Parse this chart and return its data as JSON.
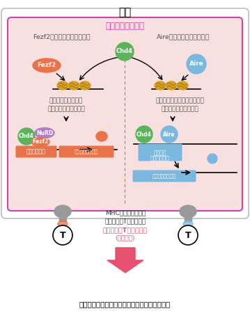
{
  "title": "胸腺",
  "subtitle": "胸腺髄質上皮細胞",
  "left_title": "Fezf2による遺伝子発現制御",
  "right_title": "Aireによる遺伝子発現制御",
  "left_promo_text1": "プロモーター領域の",
  "left_promo_text2": "クロマチン構造を制御",
  "right_promo_text1": "スーパーエンハンサー領域の",
  "right_promo_text2": "クロマチン構造を制御",
  "mhc_text1": "MHCにより末梢組織",
  "mhc_text2": "自己抗原をT細胞へ提示",
  "selection_text1": "自己反応性T細胞の除去",
  "selection_text2": "(負の選択)",
  "bottom_text": "免疫寛容を維持し、自己免疫疾患の発症を防ぐ",
  "left_promoter_label": "プロモーター",
  "left_antigen_label": "末梢組織自己抗原",
  "right_super_line1": "スーパー",
  "right_super_line2": "エンハンサー",
  "right_antigen_label": "末梢組織自己抗原",
  "fezf2_color": "#E8734A",
  "chd4_color": "#5BB35B",
  "aire_color": "#7BB8E0",
  "nurd_color": "#B07FCC",
  "promoter_color": "#E8734A",
  "antigen_left_color": "#E8734A",
  "antigen_right_color": "#7BB8E0",
  "super_enhancer_color": "#7BB8E0",
  "outer_box_color": "#BBBBBB",
  "inner_box_color": "#F8E0E0",
  "inner_box_border": "#CC44AA",
  "pink_arrow_color": "#E85070",
  "selection_text_color": "#E85070",
  "subtitle_color": "#CC44AA",
  "nucleosome_color": "#D4A020",
  "nucleosome_dark": "#8B6010",
  "bg_color": "#FFFFFF",
  "text_color": "#555555",
  "dark_text": "#333333"
}
